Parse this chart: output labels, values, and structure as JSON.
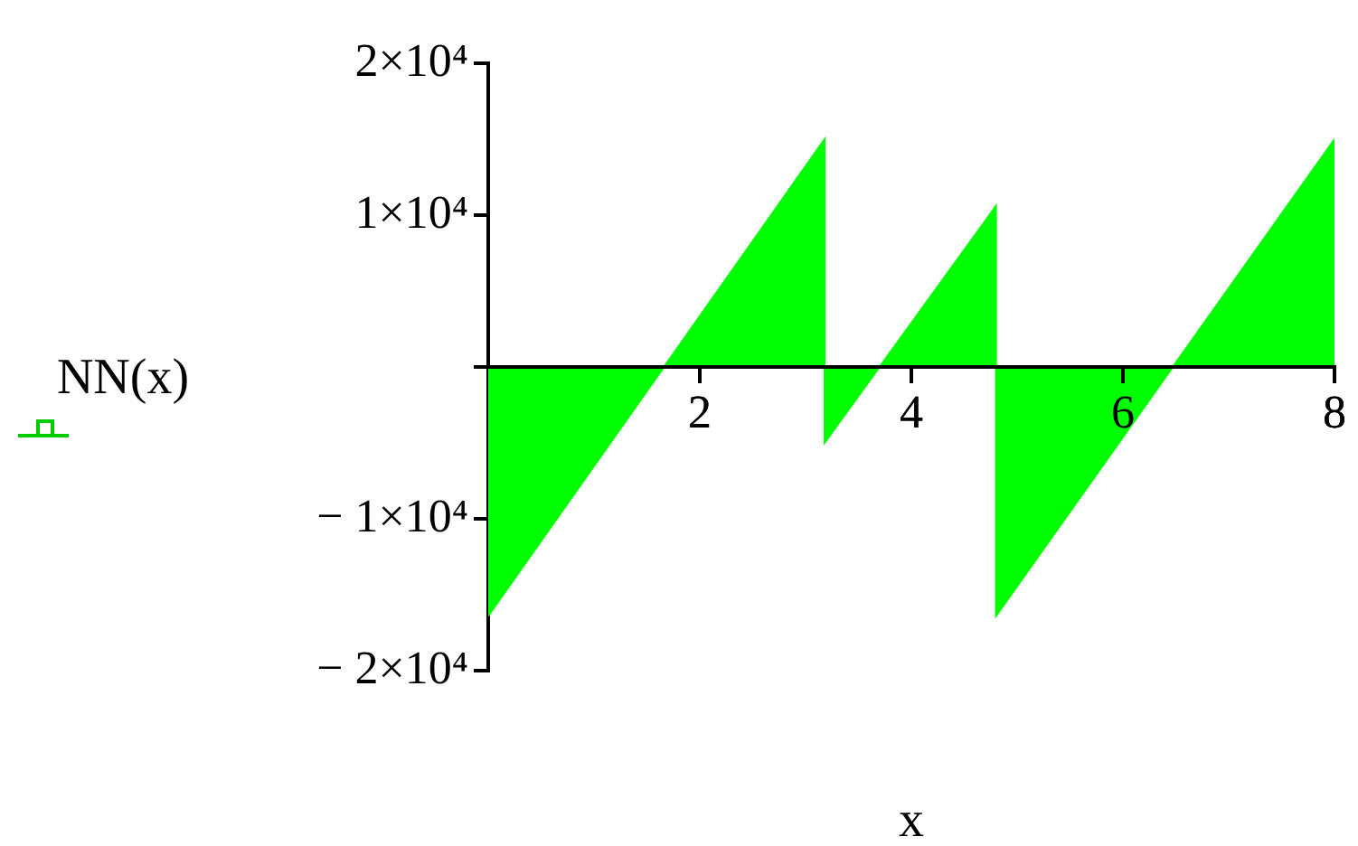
{
  "chart_data": {
    "type": "area",
    "xlabel": "x",
    "ylabel": "NN(x)",
    "x": [
      0,
      3.18,
      3.18,
      4.8,
      4.8,
      8
    ],
    "series": [
      {
        "color": "#00ff00",
        "values": [
          -16400,
          15000,
          -5000,
          10600,
          -16400,
          15000
        ]
      }
    ],
    "xlim": [
      0,
      8
    ],
    "xticks": [
      2,
      4,
      6,
      8
    ],
    "ylim": [
      -20000,
      20000
    ],
    "yticks": [
      {
        "value": -20000,
        "label": "− 2×10⁴"
      },
      {
        "value": -10000,
        "label": "− 1×10⁴"
      },
      {
        "value": 0,
        "label": null
      },
      {
        "value": 10000,
        "label": "1×10⁴"
      },
      {
        "value": 20000,
        "label": "2×10⁴"
      }
    ],
    "grid": false,
    "legend": false
  }
}
